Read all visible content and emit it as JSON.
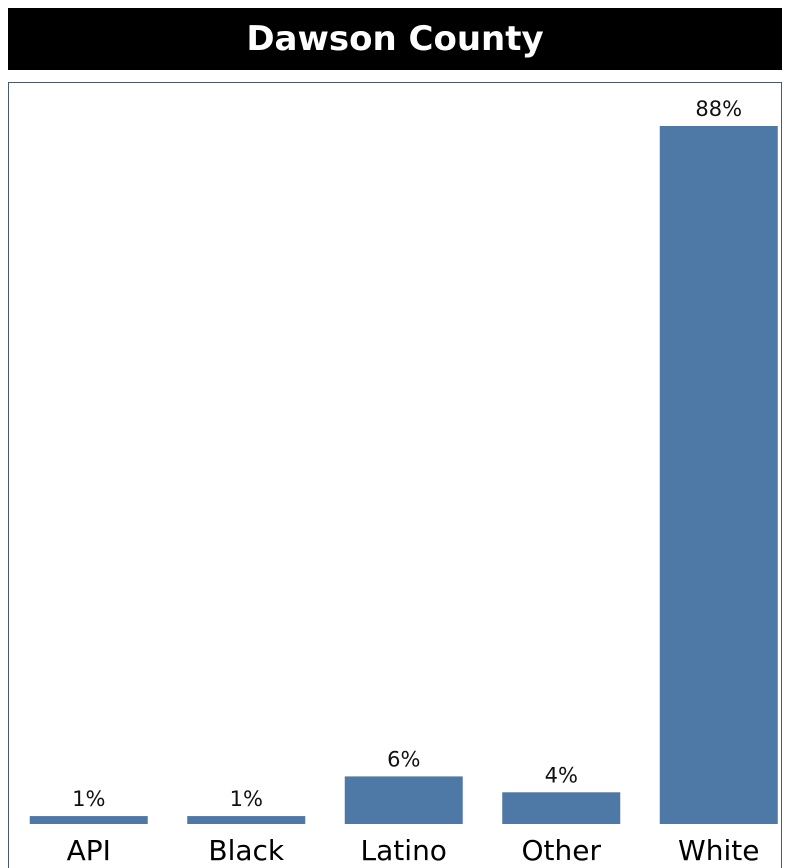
{
  "title": "Dawson County",
  "colors": {
    "bar": "#4e79a7",
    "title_bg": "#000000",
    "title_text": "#ffffff"
  },
  "chart_data": {
    "type": "bar",
    "title": "Dawson County",
    "categories": [
      "API",
      "Black",
      "Latino",
      "Other",
      "White"
    ],
    "values": [
      1,
      1,
      6,
      4,
      88
    ],
    "value_labels": [
      "1%",
      "1%",
      "6%",
      "4%",
      "88%"
    ],
    "ylim": [
      0,
      88
    ],
    "grid": false,
    "legend": "none"
  }
}
